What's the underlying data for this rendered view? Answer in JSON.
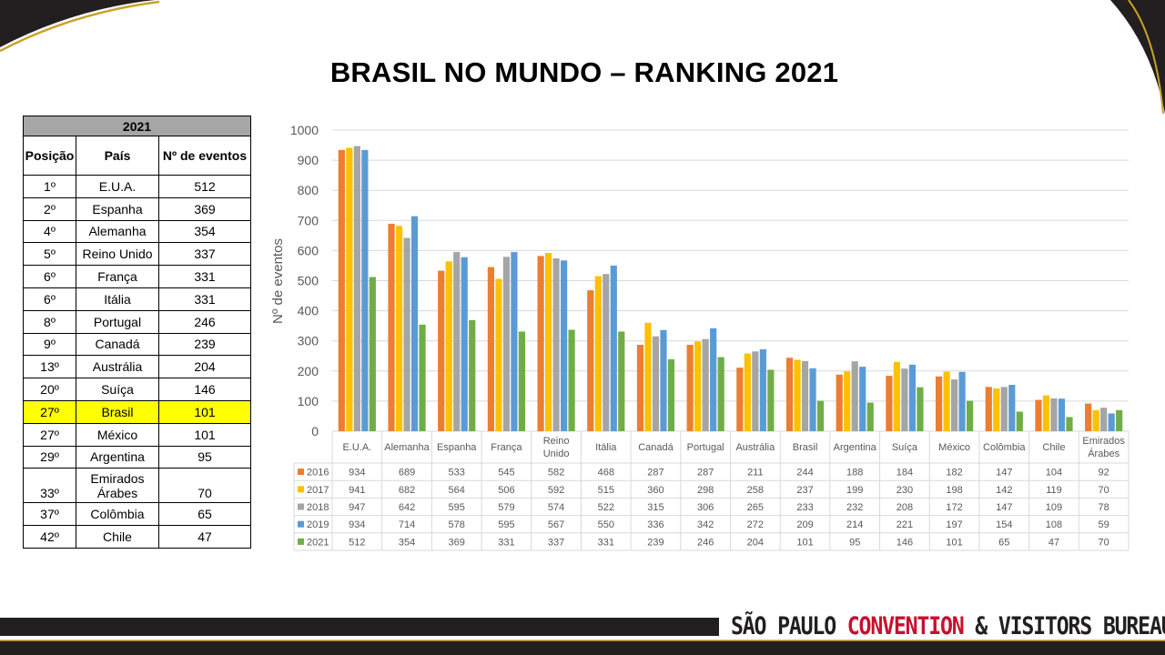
{
  "title": "BRASIL NO MUNDO – RANKING 2021",
  "table": {
    "year_header": "2021",
    "col_position": "Posição",
    "col_country": "País",
    "col_events": "Nº de eventos",
    "rows": [
      {
        "pos": "1º",
        "country": "E.U.A.",
        "events": "512"
      },
      {
        "pos": "2º",
        "country": "Espanha",
        "events": "369"
      },
      {
        "pos": "4º",
        "country": "Alemanha",
        "events": "354"
      },
      {
        "pos": "5º",
        "country": "Reino Unido",
        "events": "337"
      },
      {
        "pos": "6º",
        "country": "França",
        "events": "331"
      },
      {
        "pos": "6º",
        "country": "Itália",
        "events": "331"
      },
      {
        "pos": "8º",
        "country": "Portugal",
        "events": "246"
      },
      {
        "pos": "9º",
        "country": "Canadá",
        "events": "239"
      },
      {
        "pos": "13º",
        "country": "Austrália",
        "events": "204"
      },
      {
        "pos": "20º",
        "country": "Suíça",
        "events": "146"
      },
      {
        "pos": "27º",
        "country": "Brasil",
        "events": "101"
      },
      {
        "pos": "27º",
        "country": "México",
        "events": "101"
      },
      {
        "pos": "29º",
        "country": "Argentina",
        "events": "95"
      },
      {
        "pos": "33º",
        "country": "Emirados Árabes",
        "events": "70"
      },
      {
        "pos": "37º",
        "country": "Colômbia",
        "events": "65"
      },
      {
        "pos": "42º",
        "country": "Chile",
        "events": "47"
      }
    ],
    "highlight_color": "#ffff00"
  },
  "chart_data": {
    "type": "bar",
    "ylabel": "Nº de eventos",
    "ylim": [
      0,
      1000
    ],
    "yticks": [
      "0",
      "100",
      "200",
      "300",
      "400",
      "500",
      "600",
      "700",
      "800",
      "900",
      "1000"
    ],
    "grid": true,
    "legend": "data-table-bottom",
    "categories": [
      "E.U.A.",
      "Alemanha",
      "Espanha",
      "França",
      "Reino Unido",
      "Itália",
      "Canadá",
      "Portugal",
      "Austrália",
      "Brasil",
      "Argentina",
      "Suíça",
      "México",
      "Colômbia",
      "Chile",
      "Emirados Árabes"
    ],
    "series": [
      {
        "name": "2016",
        "color": "#ed7d31",
        "values": [
          934,
          689,
          533,
          545,
          582,
          468,
          287,
          287,
          211,
          244,
          188,
          184,
          182,
          147,
          104,
          92
        ]
      },
      {
        "name": "2017",
        "color": "#ffc000",
        "values": [
          941,
          682,
          564,
          506,
          592,
          515,
          360,
          298,
          258,
          237,
          199,
          230,
          198,
          142,
          119,
          70
        ]
      },
      {
        "name": "2018",
        "color": "#a5a5a5",
        "values": [
          947,
          642,
          595,
          579,
          574,
          522,
          315,
          306,
          265,
          233,
          232,
          208,
          172,
          147,
          109,
          78
        ]
      },
      {
        "name": "2019",
        "color": "#5b9bd5",
        "values": [
          934,
          714,
          578,
          595,
          567,
          550,
          336,
          342,
          272,
          209,
          214,
          221,
          197,
          154,
          108,
          59
        ]
      },
      {
        "name": "2021",
        "color": "#70ad47",
        "values": [
          512,
          354,
          369,
          331,
          337,
          331,
          239,
          246,
          204,
          101,
          95,
          146,
          101,
          65,
          47,
          70
        ]
      }
    ]
  },
  "footer": {
    "brand_part1": "SÃO PAULO ",
    "brand_part2": "CONVENTION",
    "brand_part3": " & VISITORS BUREAU"
  }
}
